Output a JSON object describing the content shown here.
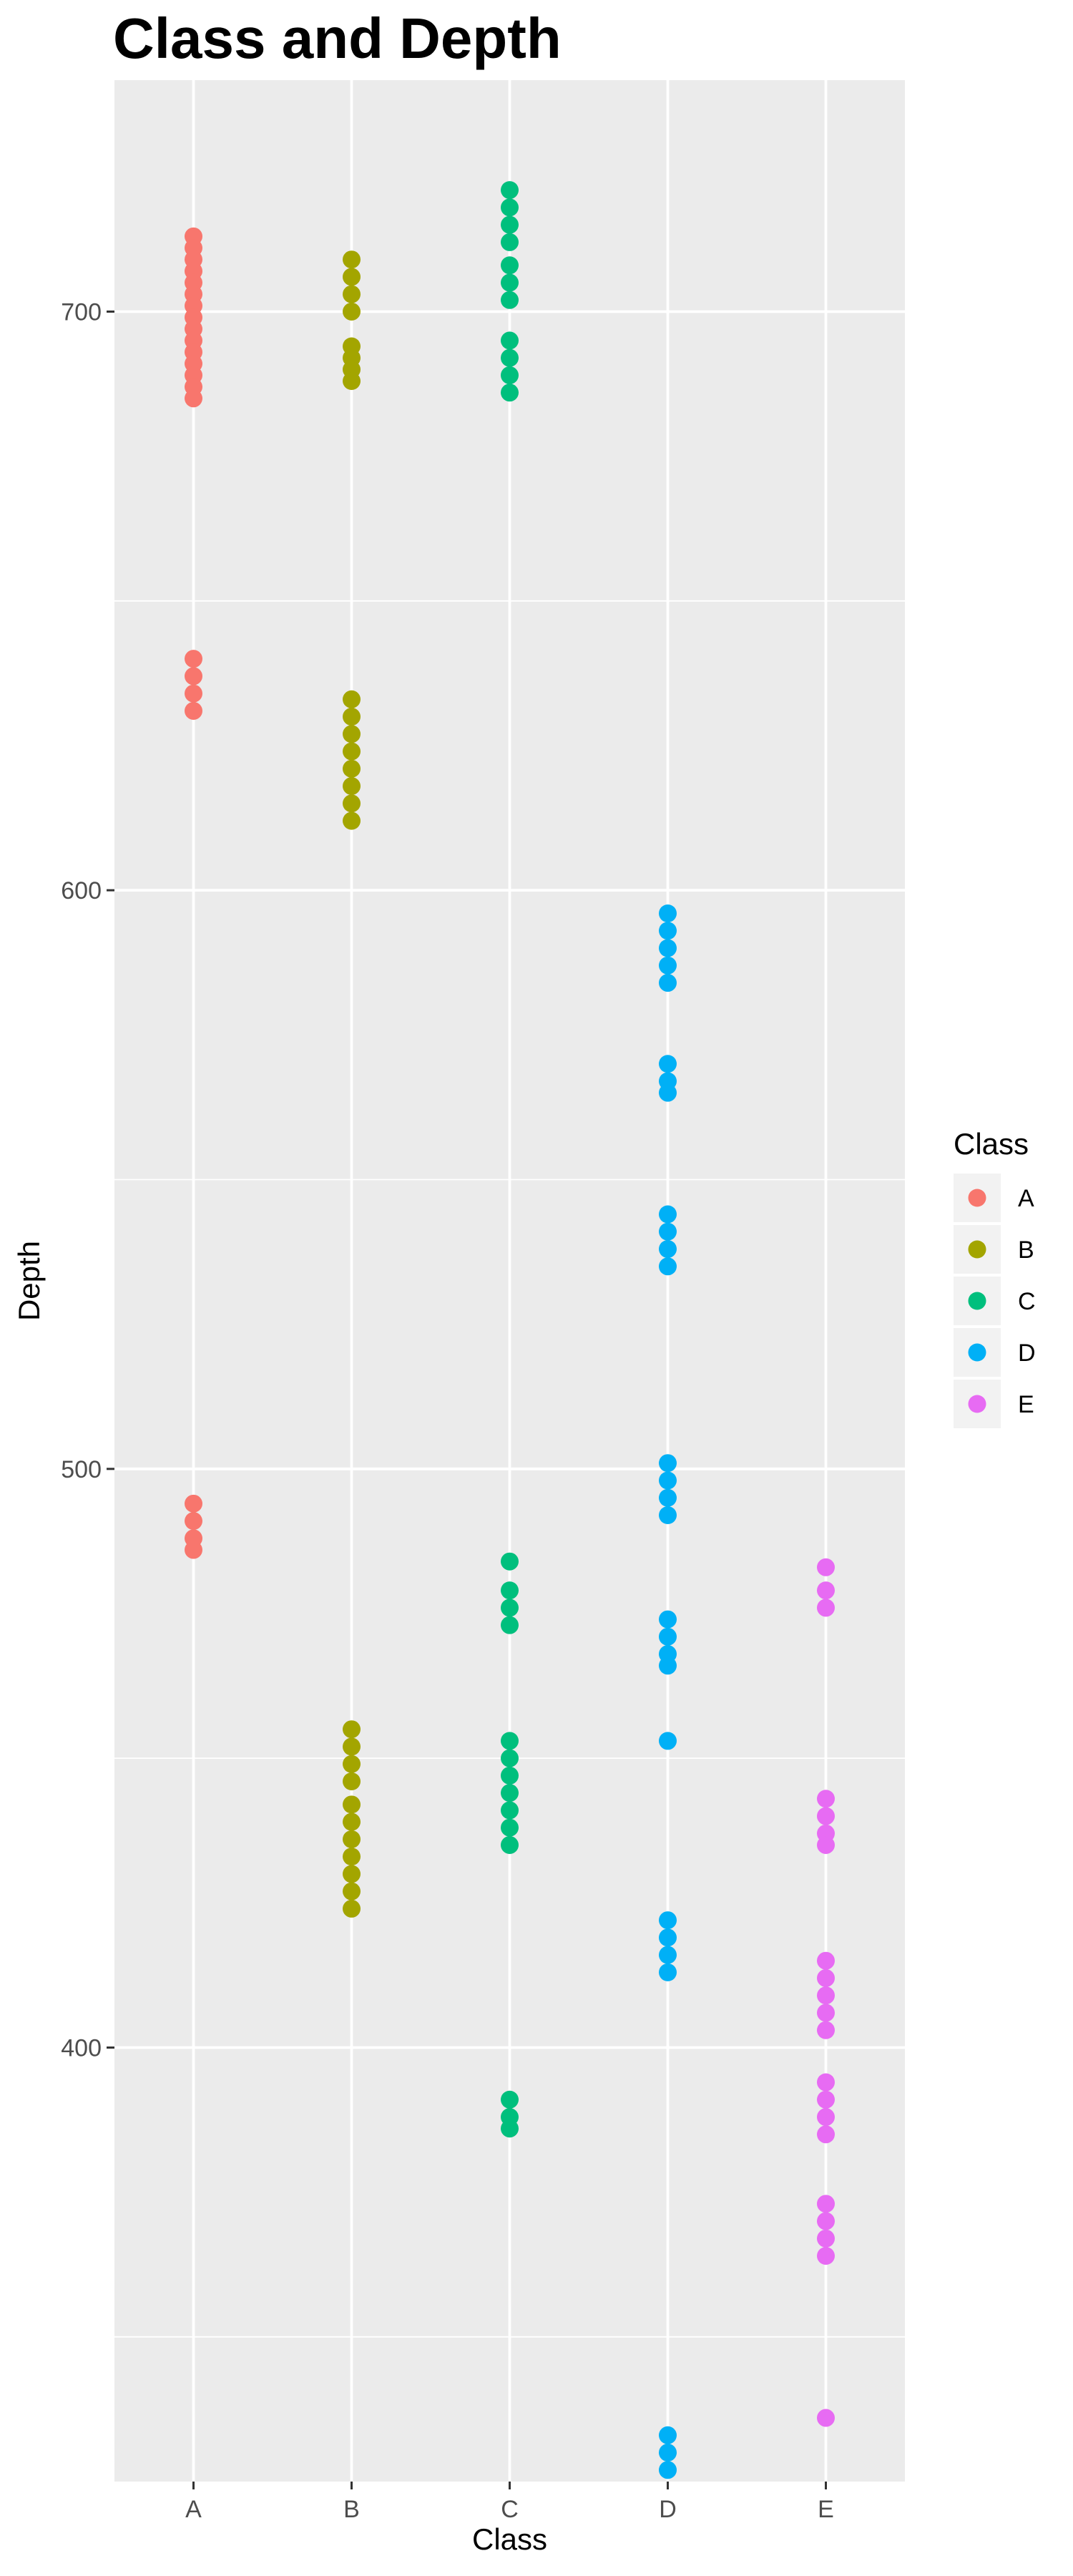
{
  "chart_data": {
    "type": "scatter",
    "title": "Class and Depth",
    "xlabel": "Class",
    "ylabel": "Depth",
    "categories": [
      "A",
      "B",
      "C",
      "D",
      "E"
    ],
    "ylim": [
      325,
      740
    ],
    "y_ticks": [
      400,
      500,
      600,
      700
    ],
    "grid": true,
    "legend": {
      "title": "Class",
      "position": "right",
      "entries": [
        "A",
        "B",
        "C",
        "D",
        "E"
      ]
    },
    "colors": {
      "A": "#F8766D",
      "B": "#A3A500",
      "C": "#00BF7D",
      "D": "#00B0F6",
      "E": "#E76BF3"
    },
    "series": [
      {
        "name": "A",
        "values": [
          713,
          711,
          709,
          707,
          705,
          703,
          701,
          699,
          697,
          695,
          693,
          691,
          689,
          687,
          685,
          640,
          637,
          634,
          631,
          494,
          491,
          488,
          486
        ]
      },
      {
        "name": "B",
        "values": [
          709,
          706,
          703,
          700,
          694,
          692,
          690,
          688,
          633,
          630,
          627,
          624,
          621,
          618,
          615,
          612,
          455,
          452,
          449,
          446,
          442,
          439,
          436,
          433,
          430,
          427,
          424
        ]
      },
      {
        "name": "C",
        "values": [
          721,
          718,
          715,
          712,
          708,
          705,
          702,
          695,
          692,
          689,
          686,
          484,
          479,
          476,
          473,
          453,
          450,
          447,
          444,
          441,
          438,
          435,
          391,
          388,
          386
        ]
      },
      {
        "name": "D",
        "values": [
          596,
          593,
          590,
          587,
          584,
          570,
          567,
          565,
          544,
          541,
          538,
          535,
          501,
          498,
          495,
          492,
          474,
          471,
          468,
          466,
          453,
          422,
          419,
          416,
          413,
          333,
          330,
          327
        ]
      },
      {
        "name": "E",
        "values": [
          483,
          479,
          476,
          443,
          440,
          437,
          435,
          415,
          412,
          409,
          406,
          403,
          394,
          391,
          388,
          385,
          373,
          370,
          367,
          364,
          336
        ]
      }
    ]
  }
}
